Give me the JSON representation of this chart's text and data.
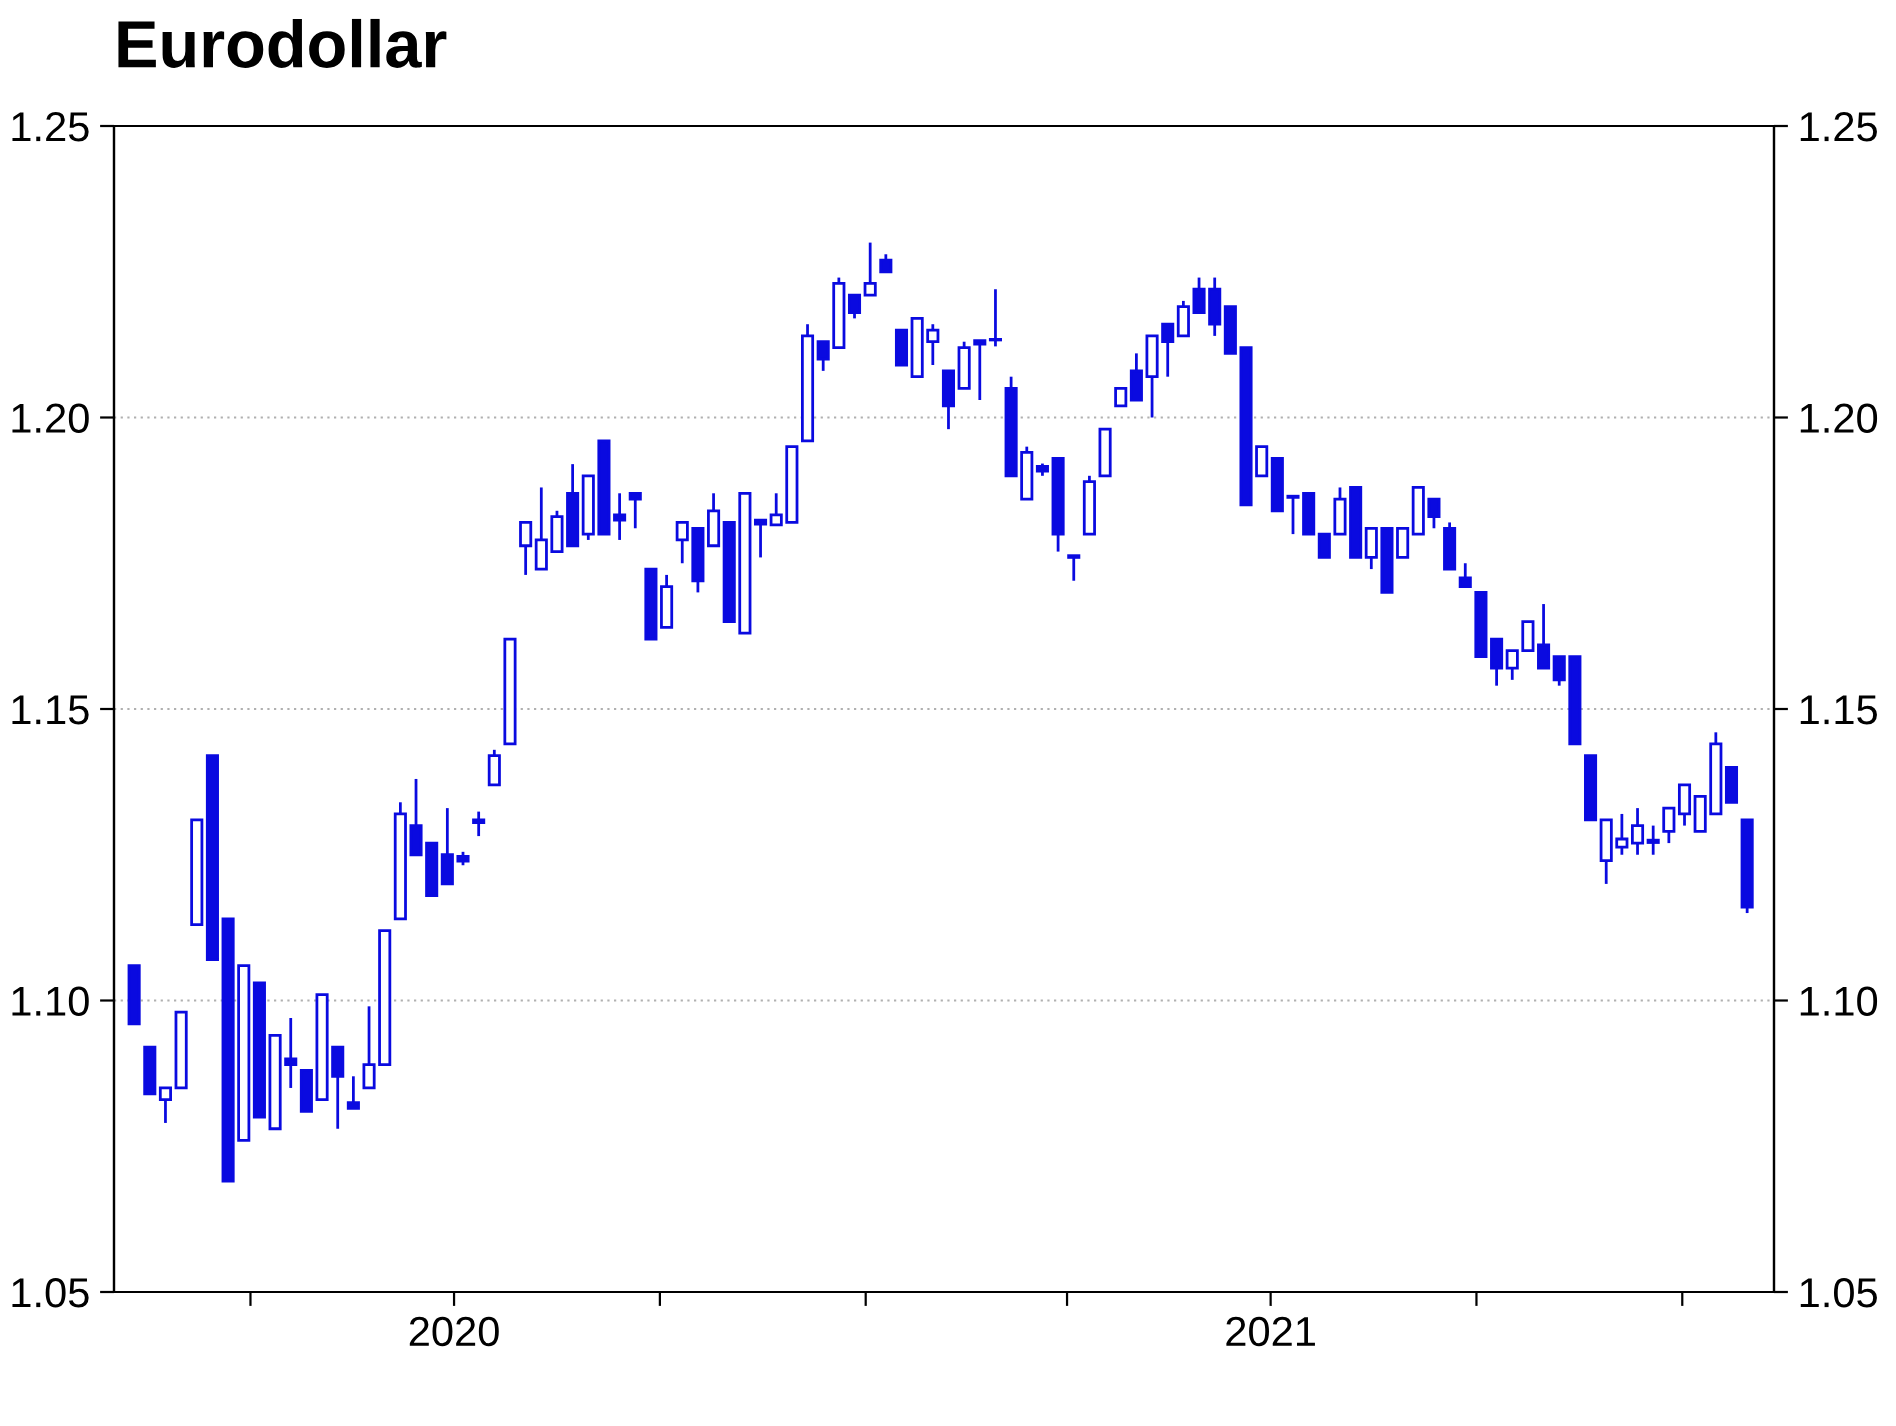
{
  "chart_data": {
    "type": "candlestick",
    "title": "Eurodollar",
    "color": "#0a0ae0",
    "grid": "y",
    "x": [
      "2020-02-09",
      "2020-02-16",
      "2020-02-23",
      "2020-03-01",
      "2020-03-08",
      "2020-03-15",
      "2020-03-22",
      "2020-03-29",
      "2020-04-05",
      "2020-04-12",
      "2020-04-19",
      "2020-04-26",
      "2020-05-03",
      "2020-05-10",
      "2020-05-17",
      "2020-05-24",
      "2020-05-31",
      "2020-06-07",
      "2020-06-14",
      "2020-06-21",
      "2020-06-28",
      "2020-07-05",
      "2020-07-12",
      "2020-07-19",
      "2020-07-26",
      "2020-08-02",
      "2020-08-09",
      "2020-08-16",
      "2020-08-23",
      "2020-08-30",
      "2020-09-06",
      "2020-09-13",
      "2020-09-20",
      "2020-09-27",
      "2020-10-04",
      "2020-10-11",
      "2020-10-18",
      "2020-10-25",
      "2020-11-01",
      "2020-11-08",
      "2020-11-15",
      "2020-11-22",
      "2020-11-29",
      "2020-12-06",
      "2020-12-13",
      "2020-12-20",
      "2020-12-27",
      "2021-01-03",
      "2021-01-10",
      "2021-01-17",
      "2021-01-24",
      "2021-01-31",
      "2021-02-07",
      "2021-02-14",
      "2021-02-21",
      "2021-02-28",
      "2021-03-07",
      "2021-03-14",
      "2021-03-21",
      "2021-03-28",
      "2021-04-04",
      "2021-04-11",
      "2021-04-18",
      "2021-04-25",
      "2021-05-02",
      "2021-05-09",
      "2021-05-16",
      "2021-05-23",
      "2021-05-30",
      "2021-06-06",
      "2021-06-13",
      "2021-06-20",
      "2021-06-27",
      "2021-07-04",
      "2021-07-11",
      "2021-07-18",
      "2021-07-25",
      "2021-08-01",
      "2021-08-08",
      "2021-08-15",
      "2021-08-22",
      "2021-08-29",
      "2021-09-05",
      "2021-09-12",
      "2021-09-19",
      "2021-09-26",
      "2021-10-03",
      "2021-10-10",
      "2021-10-17",
      "2021-10-24",
      "2021-10-31",
      "2021-11-07",
      "2021-11-14",
      "2021-11-21",
      "2021-11-28",
      "2021-12-05",
      "2021-12-12",
      "2021-12-19",
      "2021-12-26",
      "2022-01-02",
      "2022-01-09",
      "2022-01-16",
      "2022-01-23",
      "2022-01-30"
    ],
    "ohlc": [
      [
        1.106,
        1.106,
        1.096,
        1.096
      ],
      [
        1.092,
        1.092,
        1.084,
        1.084
      ],
      [
        1.083,
        1.085,
        1.079,
        1.085
      ],
      [
        1.085,
        1.098,
        1.085,
        1.098
      ],
      [
        1.113,
        1.131,
        1.113,
        1.131
      ],
      [
        1.142,
        1.142,
        1.107,
        1.107
      ],
      [
        1.114,
        1.114,
        1.069,
        1.069
      ],
      [
        1.076,
        1.106,
        1.076,
        1.106
      ],
      [
        1.103,
        1.103,
        1.08,
        1.08
      ],
      [
        1.078,
        1.094,
        1.078,
        1.094
      ],
      [
        1.09,
        1.097,
        1.085,
        1.089
      ],
      [
        1.088,
        1.088,
        1.081,
        1.081
      ],
      [
        1.083,
        1.101,
        1.083,
        1.101
      ],
      [
        1.092,
        1.092,
        1.078,
        1.087
      ],
      [
        1.0825,
        1.087,
        1.0815,
        1.0815
      ],
      [
        1.085,
        1.099,
        1.085,
        1.089
      ],
      [
        1.089,
        1.112,
        1.089,
        1.112
      ],
      [
        1.114,
        1.134,
        1.114,
        1.132
      ],
      [
        1.13,
        1.138,
        1.125,
        1.125
      ],
      [
        1.127,
        1.127,
        1.118,
        1.118
      ],
      [
        1.125,
        1.133,
        1.12,
        1.12
      ],
      [
        1.1247,
        1.1255,
        1.1232,
        1.1239
      ],
      [
        1.1305,
        1.1324,
        1.1282,
        1.131
      ],
      [
        1.137,
        1.143,
        1.137,
        1.142
      ],
      [
        1.144,
        1.162,
        1.144,
        1.162
      ],
      [
        1.178,
        1.182,
        1.173,
        1.182
      ],
      [
        1.174,
        1.188,
        1.174,
        1.179
      ],
      [
        1.177,
        1.184,
        1.177,
        1.183
      ],
      [
        1.187,
        1.192,
        1.178,
        1.178
      ],
      [
        1.18,
        1.19,
        1.179,
        1.19
      ],
      [
        1.196,
        1.196,
        1.18,
        1.18
      ],
      [
        1.1833,
        1.187,
        1.179,
        1.1824
      ],
      [
        1.187,
        1.187,
        1.181,
        1.186
      ],
      [
        1.174,
        1.174,
        1.162,
        1.162
      ],
      [
        1.164,
        1.173,
        1.164,
        1.171
      ],
      [
        1.179,
        1.182,
        1.175,
        1.182
      ],
      [
        1.181,
        1.181,
        1.17,
        1.172
      ],
      [
        1.178,
        1.187,
        1.178,
        1.184
      ],
      [
        1.182,
        1.182,
        1.165,
        1.165
      ],
      [
        1.163,
        1.187,
        1.163,
        1.187
      ],
      [
        1.1824,
        1.1824,
        1.176,
        1.1817
      ],
      [
        1.1816,
        1.187,
        1.1816,
        1.1833
      ],
      [
        1.182,
        1.195,
        1.182,
        1.195
      ],
      [
        1.196,
        1.216,
        1.196,
        1.214
      ],
      [
        1.213,
        1.213,
        1.208,
        1.21
      ],
      [
        1.212,
        1.224,
        1.212,
        1.223
      ],
      [
        1.221,
        1.221,
        1.217,
        1.218
      ],
      [
        1.221,
        1.23,
        1.221,
        1.223
      ],
      [
        1.227,
        1.228,
        1.225,
        1.225
      ],
      [
        1.215,
        1.215,
        1.209,
        1.209
      ],
      [
        1.207,
        1.217,
        1.207,
        1.217
      ],
      [
        1.213,
        1.216,
        1.209,
        1.215
      ],
      [
        1.208,
        1.208,
        1.198,
        1.202
      ],
      [
        1.205,
        1.213,
        1.205,
        1.212
      ],
      [
        1.2132,
        1.2132,
        1.203,
        1.2126
      ],
      [
        1.2133,
        1.222,
        1.2122,
        1.2134
      ],
      [
        1.205,
        1.207,
        1.19,
        1.19
      ],
      [
        1.186,
        1.195,
        1.186,
        1.194
      ],
      [
        1.1916,
        1.1921,
        1.19,
        1.1908
      ],
      [
        1.193,
        1.193,
        1.177,
        1.18
      ],
      [
        1.1763,
        1.1763,
        1.172,
        1.176
      ],
      [
        1.18,
        1.19,
        1.18,
        1.189
      ],
      [
        1.19,
        1.198,
        1.19,
        1.198
      ],
      [
        1.202,
        1.205,
        1.202,
        1.205
      ],
      [
        1.208,
        1.211,
        1.203,
        1.203
      ],
      [
        1.207,
        1.214,
        1.2,
        1.214
      ],
      [
        1.216,
        1.216,
        1.207,
        1.213
      ],
      [
        1.214,
        1.22,
        1.214,
        1.219
      ],
      [
        1.222,
        1.224,
        1.218,
        1.218
      ],
      [
        1.222,
        1.224,
        1.214,
        1.216
      ],
      [
        1.219,
        1.219,
        1.211,
        1.211
      ],
      [
        1.212,
        1.212,
        1.185,
        1.185
      ],
      [
        1.19,
        1.195,
        1.19,
        1.195
      ],
      [
        1.193,
        1.193,
        1.184,
        1.184
      ],
      [
        1.1863,
        1.1865,
        1.18,
        1.1865
      ],
      [
        1.187,
        1.187,
        1.18,
        1.18
      ],
      [
        1.18,
        1.18,
        1.176,
        1.176
      ],
      [
        1.18,
        1.188,
        1.18,
        1.186
      ],
      [
        1.188,
        1.188,
        1.176,
        1.176
      ],
      [
        1.176,
        1.181,
        1.174,
        1.181
      ],
      [
        1.181,
        1.181,
        1.17,
        1.17
      ],
      [
        1.176,
        1.181,
        1.176,
        1.181
      ],
      [
        1.18,
        1.188,
        1.18,
        1.188
      ],
      [
        1.186,
        1.186,
        1.181,
        1.183
      ],
      [
        1.181,
        1.182,
        1.174,
        1.174
      ],
      [
        1.1725,
        1.175,
        1.171,
        1.171
      ],
      [
        1.17,
        1.17,
        1.159,
        1.159
      ],
      [
        1.162,
        1.162,
        1.154,
        1.157
      ],
      [
        1.157,
        1.16,
        1.155,
        1.16
      ],
      [
        1.16,
        1.165,
        1.16,
        1.165
      ],
      [
        1.161,
        1.168,
        1.157,
        1.157
      ],
      [
        1.159,
        1.159,
        1.154,
        1.155
      ],
      [
        1.159,
        1.159,
        1.144,
        1.144
      ],
      [
        1.142,
        1.142,
        1.131,
        1.131
      ],
      [
        1.124,
        1.131,
        1.12,
        1.131
      ],
      [
        1.1263,
        1.132,
        1.125,
        1.1277
      ],
      [
        1.127,
        1.133,
        1.125,
        1.13
      ],
      [
        1.1275,
        1.13,
        1.125,
        1.1271
      ],
      [
        1.129,
        1.133,
        1.127,
        1.133
      ],
      [
        1.132,
        1.137,
        1.13,
        1.137
      ],
      [
        1.129,
        1.135,
        1.129,
        1.135
      ],
      [
        1.132,
        1.146,
        1.132,
        1.144
      ],
      [
        1.14,
        1.14,
        1.134,
        1.134
      ],
      [
        1.131,
        1.131,
        1.115,
        1.116
      ]
    ],
    "xlim": [
      "2020-01-31",
      "2022-02-11"
    ],
    "xticks": [
      {
        "value": "2020-04-01",
        "label": null
      },
      {
        "value": "2020-07-01",
        "label": "2020"
      },
      {
        "value": "2020-10-01",
        "label": null
      },
      {
        "value": "2021-01-01",
        "label": null
      },
      {
        "value": "2021-04-01",
        "label": null
      },
      {
        "value": "2021-07-01",
        "label": "2021"
      },
      {
        "value": "2021-10-01",
        "label": null
      },
      {
        "value": "2022-01-01",
        "label": null
      }
    ],
    "ylim": [
      1.05,
      1.25
    ],
    "yticks": [
      {
        "value": 1.05,
        "label": "1.05"
      },
      {
        "value": 1.1,
        "label": "1.10"
      },
      {
        "value": 1.15,
        "label": "1.15"
      },
      {
        "value": 1.2,
        "label": "1.20"
      },
      {
        "value": 1.25,
        "label": "1.25"
      }
    ],
    "y2lim": [
      1.05,
      1.25
    ],
    "y2ticks": [
      {
        "value": 1.05,
        "label": "1.05"
      },
      {
        "value": 1.1,
        "label": "1.10"
      },
      {
        "value": 1.15,
        "label": "1.15"
      },
      {
        "value": 1.2,
        "label": "1.20"
      },
      {
        "value": 1.25,
        "label": "1.25"
      }
    ]
  }
}
